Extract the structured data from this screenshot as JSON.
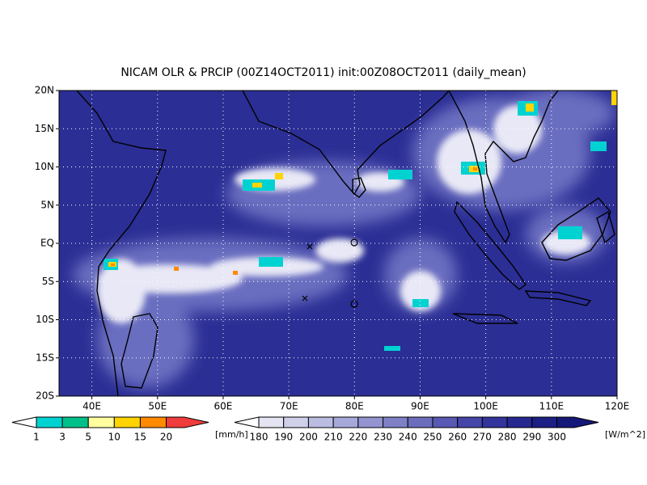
{
  "chart_data": {
    "type": "map",
    "title": "NICAM OLR & PRCIP (00Z14OCT2011) init:00Z08OCT2011 (daily_mean)",
    "xlim": [
      35,
      120
    ],
    "ylim": [
      -20,
      20
    ],
    "xticks": [
      {
        "value": 40,
        "label": "40E"
      },
      {
        "value": 50,
        "label": "50E"
      },
      {
        "value": 60,
        "label": "60E"
      },
      {
        "value": 70,
        "label": "70E"
      },
      {
        "value": 80,
        "label": "80E"
      },
      {
        "value": 90,
        "label": "90E"
      },
      {
        "value": 100,
        "label": "100E"
      },
      {
        "value": 110,
        "label": "110E"
      },
      {
        "value": 120,
        "label": "120E"
      }
    ],
    "yticks": [
      {
        "value": 20,
        "label": "20N"
      },
      {
        "value": 15,
        "label": "15N"
      },
      {
        "value": 10,
        "label": "10N"
      },
      {
        "value": 5,
        "label": "5N"
      },
      {
        "value": 0,
        "label": "EQ"
      },
      {
        "value": -5,
        "label": "5S"
      },
      {
        "value": -10,
        "label": "10S"
      },
      {
        "value": -15,
        "label": "15S"
      },
      {
        "value": -20,
        "label": "20S"
      }
    ],
    "grid": true,
    "precip_bar": {
      "levels": [
        1,
        3,
        5,
        10,
        15,
        20
      ],
      "unit": "[mm/h]",
      "colors": [
        "#00d2d2",
        "#00c08a",
        "#ffffa0",
        "#ffd400",
        "#ff8a00",
        "#f03c3c"
      ]
    },
    "olr_bar": {
      "levels": [
        180,
        190,
        200,
        210,
        220,
        230,
        240,
        250,
        260,
        270,
        280,
        290,
        300
      ],
      "unit": "[W/m^2]",
      "colors": [
        "#e4e4f2",
        "#cfd0ea",
        "#bbbce2",
        "#a7a8da",
        "#9394d0",
        "#7f80c6",
        "#6b6dbc",
        "#5859b2",
        "#4446a8",
        "#33359c",
        "#262990",
        "#1c1f84",
        "#141878"
      ]
    }
  }
}
